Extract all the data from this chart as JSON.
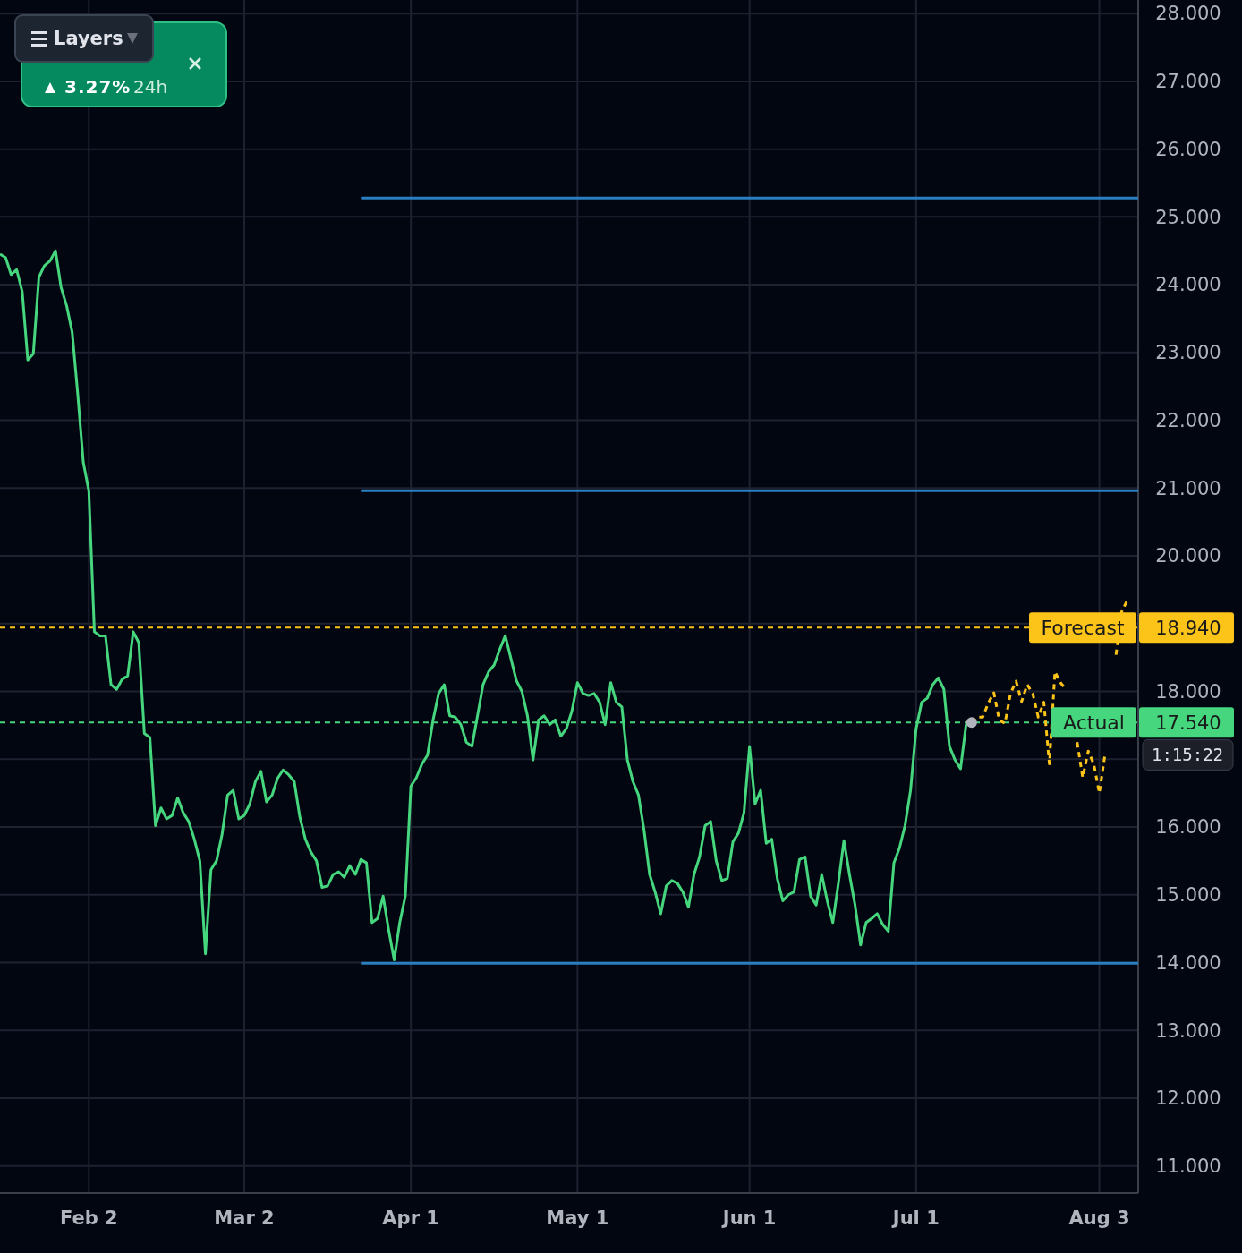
{
  "chart_data": {
    "type": "line",
    "xlim": [
      "--01-17",
      "--08-10"
    ],
    "xticks": [
      {
        "value": "--02-02",
        "label": "Feb 2"
      },
      {
        "value": "--03-02",
        "label": "Mar 2"
      },
      {
        "value": "--04-01",
        "label": "Apr 1"
      },
      {
        "value": "--05-01",
        "label": "May 1"
      },
      {
        "value": "--06-01",
        "label": "Jun 1"
      },
      {
        "value": "--07-01",
        "label": "Jul 1"
      },
      {
        "value": "--08-03",
        "label": "Aug 3"
      }
    ],
    "ylim": [
      10.6,
      28.2
    ],
    "yticks": [
      {
        "value": 11,
        "label": "11.000"
      },
      {
        "value": 12,
        "label": "12.000"
      },
      {
        "value": 13,
        "label": "13.000"
      },
      {
        "value": 14,
        "label": "14.000"
      },
      {
        "value": 15,
        "label": "15.000"
      },
      {
        "value": 16,
        "label": "16.000"
      },
      {
        "value": 17,
        "label": null
      },
      {
        "value": 18,
        "label": "18.000"
      },
      {
        "value": 19,
        "label": null
      },
      {
        "value": 20,
        "label": "20.000"
      },
      {
        "value": 21,
        "label": "21.000"
      },
      {
        "value": 22,
        "label": "22.000"
      },
      {
        "value": 23,
        "label": "23.000"
      },
      {
        "value": 24,
        "label": "24.000"
      },
      {
        "value": 25,
        "label": "25.000"
      },
      {
        "value": 26,
        "label": "26.000"
      },
      {
        "value": 27,
        "label": "27.000"
      },
      {
        "value": 28,
        "label": "28.000"
      }
    ],
    "grid": true,
    "line_style": "solid",
    "marker": "none",
    "series": [
      {
        "color": "#2a7fc0",
        "x": [
          "--03-23",
          "--08-10"
        ],
        "values": [
          25.28,
          25.28
        ]
      },
      {
        "color": "#2a7fc0",
        "x": [
          "--03-23",
          "--08-10"
        ],
        "values": [
          20.96,
          20.96
        ]
      },
      {
        "color": "#2a7fc0",
        "x": [
          "--03-23",
          "--08-10"
        ],
        "values": [
          13.99,
          13.99
        ]
      },
      {
        "color": "#45d67e",
        "x": [
          "--01-17",
          "--01-18",
          "--01-19",
          "--01-20",
          "--01-21",
          "--01-22",
          "--01-23",
          "--01-24",
          "--01-25",
          "--01-26",
          "--01-27",
          "--01-28",
          "--01-29",
          "--01-30",
          "--01-31",
          "--02-01",
          "--02-02",
          "--02-03",
          "--02-04",
          "--02-05",
          "--02-06",
          "--02-07",
          "--02-08",
          "--02-09",
          "--02-10",
          "--02-11",
          "--02-12",
          "--02-13",
          "--02-14",
          "--02-15",
          "--02-16",
          "--02-17",
          "--02-18",
          "--02-19",
          "--02-20",
          "--02-21",
          "--02-22",
          "--02-23",
          "--02-24",
          "--02-25",
          "--02-26",
          "--02-27",
          "--02-28",
          "--03-01",
          "--03-02",
          "--03-03",
          "--03-04",
          "--03-05",
          "--03-06",
          "--03-07",
          "--03-08",
          "--03-09",
          "--03-10",
          "--03-11",
          "--03-12",
          "--03-13",
          "--03-14",
          "--03-15",
          "--03-16",
          "--03-17",
          "--03-18",
          "--03-19",
          "--03-20",
          "--03-21",
          "--03-22",
          "--03-23",
          "--03-24",
          "--03-25",
          "--03-26",
          "--03-27",
          "--03-28",
          "--03-29",
          "--03-30",
          "--03-31",
          "--04-01",
          "--04-02",
          "--04-03",
          "--04-04",
          "--04-05",
          "--04-06",
          "--04-07",
          "--04-08",
          "--04-09",
          "--04-10",
          "--04-11",
          "--04-12",
          "--04-13",
          "--04-14",
          "--04-15",
          "--04-16",
          "--04-17",
          "--04-18",
          "--04-19",
          "--04-20",
          "--04-21",
          "--04-22",
          "--04-23",
          "--04-24",
          "--04-25",
          "--04-26",
          "--04-27",
          "--04-28",
          "--04-29",
          "--04-30",
          "--05-01",
          "--05-02",
          "--05-03",
          "--05-04",
          "--05-05",
          "--05-06",
          "--05-07",
          "--05-08",
          "--05-09",
          "--05-10",
          "--05-11",
          "--05-12",
          "--05-13",
          "--05-14",
          "--05-15",
          "--05-16",
          "--05-17",
          "--05-18",
          "--05-19",
          "--05-20",
          "--05-21",
          "--05-22",
          "--05-23",
          "--05-24",
          "--05-25",
          "--05-26",
          "--05-27",
          "--05-28",
          "--05-29",
          "--05-30",
          "--05-31",
          "--06-01",
          "--06-02",
          "--06-03",
          "--06-04",
          "--06-05",
          "--06-06",
          "--06-07",
          "--06-08",
          "--06-09",
          "--06-10",
          "--06-11",
          "--06-12",
          "--06-13",
          "--06-14",
          "--06-15",
          "--06-16",
          "--06-17",
          "--06-18",
          "--06-19",
          "--06-20",
          "--06-21",
          "--06-22",
          "--06-23",
          "--06-24",
          "--06-25",
          "--06-26",
          "--06-27",
          "--06-28",
          "--06-29",
          "--06-30",
          "--07-01",
          "--07-02",
          "--07-03",
          "--07-04",
          "--07-05",
          "--07-06",
          "--07-07",
          "--07-08",
          "--07-09",
          "--07-10",
          "--07-11"
        ],
        "values": [
          24.45,
          24.4,
          24.15,
          24.22,
          23.9,
          22.89,
          22.98,
          24.11,
          24.28,
          24.35,
          24.5,
          23.96,
          23.69,
          23.3,
          22.39,
          21.38,
          20.96,
          18.88,
          18.82,
          18.82,
          18.1,
          18.03,
          18.18,
          18.23,
          18.88,
          18.72,
          17.38,
          17.32,
          16.02,
          16.28,
          16.12,
          16.17,
          16.43,
          16.21,
          16.08,
          15.82,
          15.5,
          14.13,
          15.37,
          15.5,
          15.89,
          16.47,
          16.54,
          16.12,
          16.17,
          16.34,
          16.67,
          16.82,
          16.37,
          16.47,
          16.72,
          16.84,
          16.77,
          16.67,
          16.15,
          15.82,
          15.63,
          15.5,
          15.11,
          15.13,
          15.3,
          15.34,
          15.26,
          15.43,
          15.3,
          15.52,
          15.47,
          14.59,
          14.65,
          14.98,
          14.48,
          14.04,
          14.59,
          14.98,
          16.6,
          16.73,
          16.93,
          17.06,
          17.58,
          17.97,
          18.1,
          17.64,
          17.62,
          17.51,
          17.25,
          17.19,
          17.64,
          18.1,
          18.29,
          18.39,
          18.62,
          18.82,
          18.49,
          18.16,
          18.0,
          17.64,
          16.99,
          17.58,
          17.64,
          17.51,
          17.58,
          17.34,
          17.45,
          17.71,
          18.13,
          17.97,
          17.94,
          17.97,
          17.84,
          17.51,
          18.13,
          17.84,
          17.77,
          16.99,
          16.67,
          16.47,
          15.95,
          15.3,
          15.04,
          14.72,
          15.13,
          15.21,
          15.17,
          15.04,
          14.82,
          15.3,
          15.56,
          16.02,
          16.08,
          15.5,
          15.21,
          15.24,
          15.78,
          15.91,
          16.21,
          17.19,
          16.34,
          16.54,
          15.76,
          15.82,
          15.24,
          14.91,
          15.0,
          15.04,
          15.52,
          15.56,
          14.98,
          14.85,
          15.3,
          14.91,
          14.59,
          15.17,
          15.8,
          15.3,
          14.85,
          14.26,
          14.59,
          14.65,
          14.72,
          14.56,
          14.46,
          15.47,
          15.69,
          16.02,
          16.54,
          17.45,
          17.84,
          17.9,
          18.1,
          18.2,
          18.03,
          17.19,
          16.99,
          16.86,
          17.51,
          17.54
        ]
      },
      {
        "color": "#fcc419",
        "line_style": "dashed",
        "x": [
          "--07-11",
          "--07-12",
          "--07-13",
          "--07-14",
          "--07-15",
          "--07-16",
          "--07-17",
          "--07-18",
          "--07-19",
          "--07-20",
          "--07-21",
          "--07-22",
          "--07-23",
          "--07-24",
          "--07-25",
          "--07-26",
          "--07-27",
          "--07-28",
          "--07-29",
          "--07-30",
          "--07-31",
          "--08-01",
          "--08-02",
          "--08-03",
          "--08-04",
          "--08-05",
          "--08-06",
          "--08-07",
          "--08-08"
        ],
        "values": [
          17.54,
          17.62,
          17.62,
          17.83,
          17.98,
          17.57,
          17.53,
          17.97,
          18.15,
          17.85,
          18.1,
          17.97,
          17.62,
          17.84,
          16.93,
          18.29,
          18.13,
          18.03,
          null,
          17.25,
          16.73,
          17.12,
          16.93,
          16.5,
          17.06,
          null,
          18.54,
          19.17,
          19.34
        ]
      },
      {
        "type": "scatter",
        "marker": "circle",
        "color": "#b0b4bc",
        "x": [
          "--07-11"
        ],
        "values": [
          17.54
        ]
      }
    ],
    "ref_lines": [
      {
        "axis": "y",
        "value": 18.94,
        "label": "Forecast",
        "color": "#fcc419",
        "line_style": "dashed"
      },
      {
        "axis": "y",
        "value": 17.54,
        "label": "Actual",
        "color": "#45d67e",
        "line_style": "dashed"
      }
    ],
    "annotations": [
      "Layers",
      "3.27%",
      "24h",
      "1:15:22",
      "18.940",
      "17.540"
    ]
  }
}
